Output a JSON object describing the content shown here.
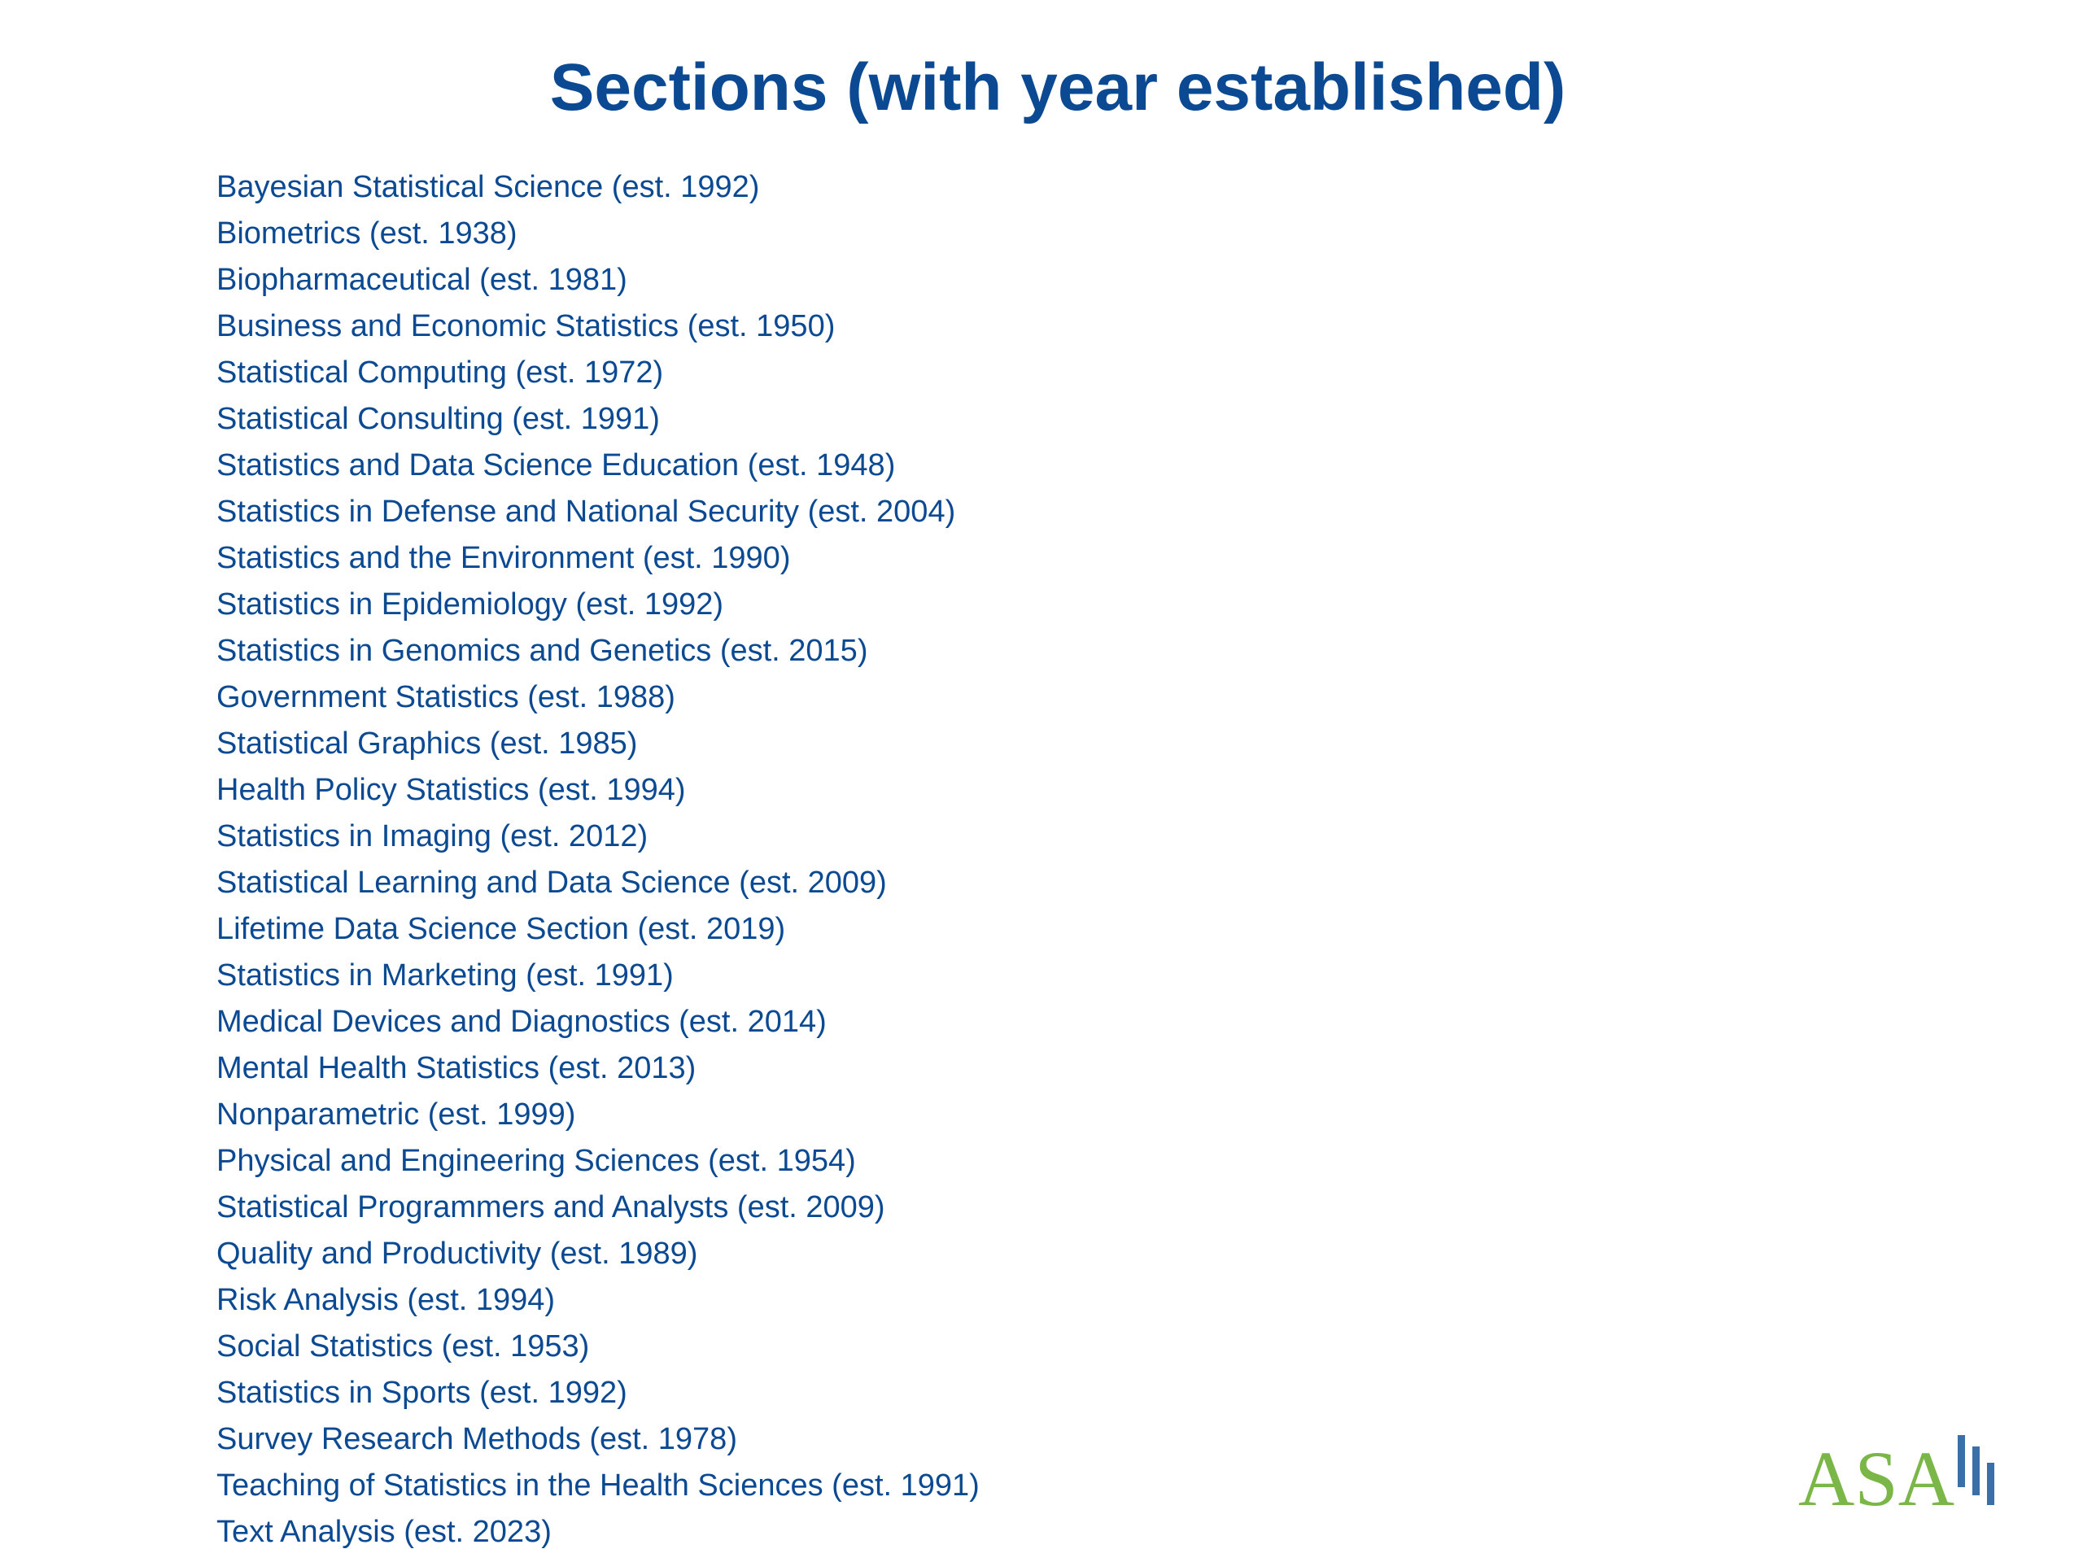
{
  "slide": {
    "title": "Sections (with year established)"
  },
  "sections": [
    "Bayesian Statistical Science (est. 1992)",
    "Biometrics (est. 1938)",
    "Biopharmaceutical (est. 1981)",
    "Business and Economic Statistics (est. 1950)",
    "Statistical Computing (est. 1972)",
    "Statistical Consulting (est. 1991)",
    "Statistics and Data Science Education (est. 1948)",
    "Statistics in Defense and National Security (est. 2004)",
    "Statistics and the Environment (est. 1990)",
    "Statistics in Epidemiology (est. 1992)",
    "Statistics in Genomics and Genetics (est. 2015)",
    "Government Statistics (est. 1988)",
    "Statistical Graphics (est. 1985)",
    "Health Policy Statistics (est. 1994)",
    "Statistics in Imaging (est. 2012)",
    "Statistical Learning and Data Science (est. 2009)",
    "Lifetime Data Science Section (est. 2019)",
    "Statistics in Marketing (est. 1991)",
    "Medical Devices and Diagnostics (est. 2014)",
    "Mental Health Statistics (est. 2013)",
    "Nonparametric (est. 1999)",
    "Physical and Engineering Sciences (est. 1954)",
    "Statistical Programmers and Analysts (est. 2009)",
    "Quality and Productivity (est. 1989)",
    "Risk Analysis (est. 1994)",
    "Social Statistics (est. 1953)",
    "Statistics in Sports (est. 1992)",
    "Survey Research Methods (est. 1978)",
    "Teaching of Statistics in the Health Sciences (est. 1991)",
    "Text Analysis (est. 2023)"
  ],
  "logo": {
    "text": "ASA",
    "text_color": "#7ab648",
    "bar_color": "#3a6fa8"
  },
  "colors": {
    "text": "#0b4a93",
    "background": "#ffffff"
  }
}
